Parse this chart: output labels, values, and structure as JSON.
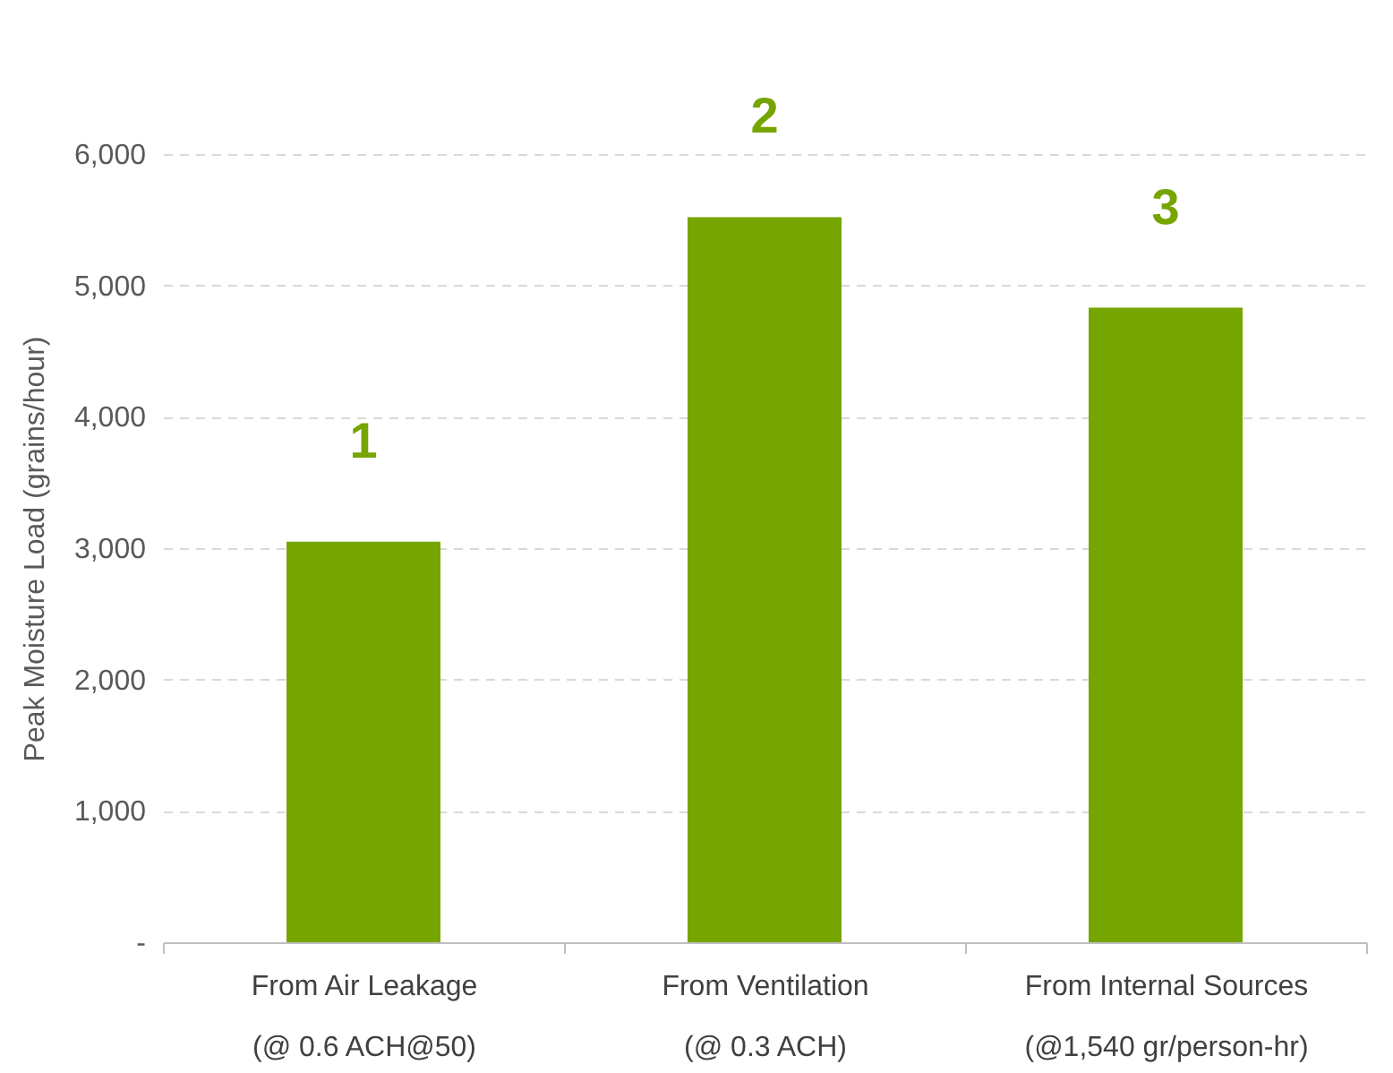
{
  "chart_data": {
    "type": "bar",
    "ylabel": "Peak Moisture Load (grains/hour)",
    "categories": [
      "From Air Leakage\n(@ 0.6 ACH@50)",
      "From Ventilation\n(@ 0.3 ACH)",
      "From Internal Sources\n(@1,540 gr/person-hr)"
    ],
    "values": [
      3050,
      5520,
      4830
    ],
    "color": "#77a500",
    "ylim": [
      0,
      6000
    ],
    "yticks": [
      {
        "value": 0,
        "label": "-"
      },
      {
        "value": 1000,
        "label": "1,000"
      },
      {
        "value": 2000,
        "label": "2,000"
      },
      {
        "value": 3000,
        "label": "3,000"
      },
      {
        "value": 4000,
        "label": "4,000"
      },
      {
        "value": 5000,
        "label": "5,000"
      },
      {
        "value": 6000,
        "label": "6,000"
      }
    ],
    "grid": "y",
    "annotations": [
      "1",
      "2",
      "3"
    ]
  }
}
